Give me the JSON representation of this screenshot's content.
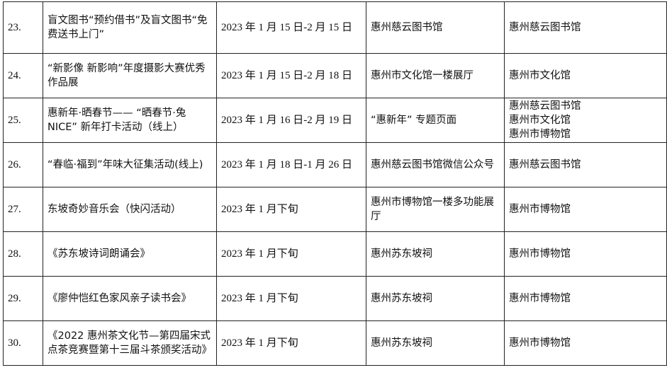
{
  "rows": [
    {
      "num": "23.",
      "name": "盲文图书“预约借书”及盲文图书“免费送书上门”",
      "date": "2023 年 1 月 15 日-2 月 15 日",
      "venue": "惠州慈云图书馆",
      "organizer": "惠州慈云图书馆"
    },
    {
      "num": "24.",
      "name": "“新影像 新影响”年度摄影大赛优秀作品展",
      "date": "2023 年 1 月 15 日-2 月 18 日",
      "venue": "惠州市文化馆一楼展厅",
      "organizer": "惠州市文化馆"
    },
    {
      "num": "25.",
      "name": "惠新年·晒春节—— “晒春节·兔NICE” 新年打卡活动（线上）",
      "date": "2023 年 1 月 16 日-2 月 19 日",
      "venue": " “惠新年” 专题页面",
      "organizer": "惠州慈云图书馆\n惠州市文化馆\n惠州市博物馆"
    },
    {
      "num": "26.",
      "name": " “春临·福到”年味大征集活动(线上)",
      "date": "2023 年 1 月 18 日-1 月 26 日",
      "venue": "惠州慈云图书馆微信公众号",
      "organizer": "惠州慈云图书馆"
    },
    {
      "num": "27.",
      "name": "东坡奇妙音乐会（快闪活动）",
      "date": "2023 年 1 月下旬",
      "venue": "惠州市博物馆一楼多功能展厅",
      "organizer": "惠州市博物馆"
    },
    {
      "num": "28.",
      "name": "《苏东坡诗词朗诵会》",
      "date": "2023 年 1 月下旬",
      "venue": "惠州苏东坡祠",
      "organizer": "惠州市博物馆"
    },
    {
      "num": "29.",
      "name": "《廖仲恺红色家风亲子读书会》",
      "date": "2023 年 1 月下旬",
      "venue": "惠州苏东坡祠",
      "organizer": "惠州市博物馆"
    },
    {
      "num": "30.",
      "name": "《2022 惠州茶文化节—第四届宋式点茶竞赛暨第十三届斗茶颁奖活动》",
      "date": "2023 年 1 月下旬",
      "venue": "惠州苏东坡祠",
      "organizer": "惠州市博物馆"
    }
  ]
}
